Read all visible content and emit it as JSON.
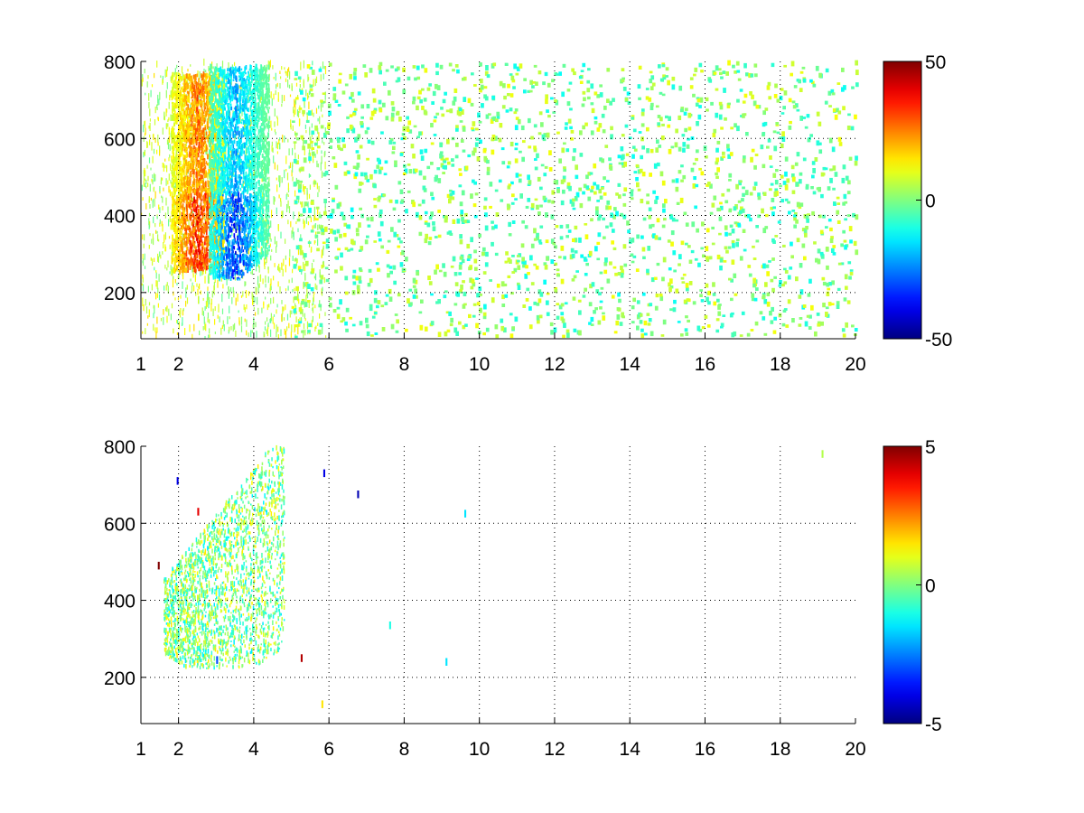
{
  "chart_data": [
    {
      "type": "heatmap",
      "title": "",
      "xlabel": "",
      "ylabel": "",
      "xlim": [
        1,
        20
      ],
      "ylim": [
        80,
        800
      ],
      "x_ticks": [
        "1",
        "2",
        "4",
        "6",
        "8",
        "10",
        "12",
        "14",
        "16",
        "18",
        "20"
      ],
      "y_ticks": [
        "200",
        "400",
        "600",
        "800"
      ],
      "grid": true,
      "colormap": "jet",
      "colorbar": {
        "clim": [
          -50,
          50
        ],
        "ticks": [
          "50",
          "0",
          "-50"
        ]
      },
      "description_values": {
        "positive_band": {
          "x_range": [
            1.8,
            3.2
          ],
          "y_range": [
            240,
            760
          ],
          "peak_value": 45
        },
        "negative_band": {
          "x_range": [
            2.8,
            4.4
          ],
          "y_range": [
            230,
            780
          ],
          "peak_value": -45
        },
        "background_noise": {
          "x_range": [
            5,
            20
          ],
          "value_range": [
            -12,
            12
          ]
        }
      }
    },
    {
      "type": "heatmap",
      "title": "",
      "xlabel": "",
      "ylabel": "",
      "xlim": [
        1,
        20
      ],
      "ylim": [
        80,
        800
      ],
      "x_ticks": [
        "1",
        "2",
        "4",
        "6",
        "8",
        "10",
        "12",
        "14",
        "16",
        "18",
        "20"
      ],
      "y_ticks": [
        "200",
        "400",
        "600",
        "800"
      ],
      "grid": true,
      "colormap": "jet",
      "colorbar": {
        "clim": [
          -5,
          5
        ],
        "ticks": [
          "5",
          "0",
          "-5"
        ]
      },
      "description_values": {
        "central_blob": {
          "x_range": [
            1.6,
            4.8
          ],
          "y_range": [
            220,
            790
          ],
          "value_range": [
            -1.5,
            1.5
          ]
        }
      }
    }
  ]
}
